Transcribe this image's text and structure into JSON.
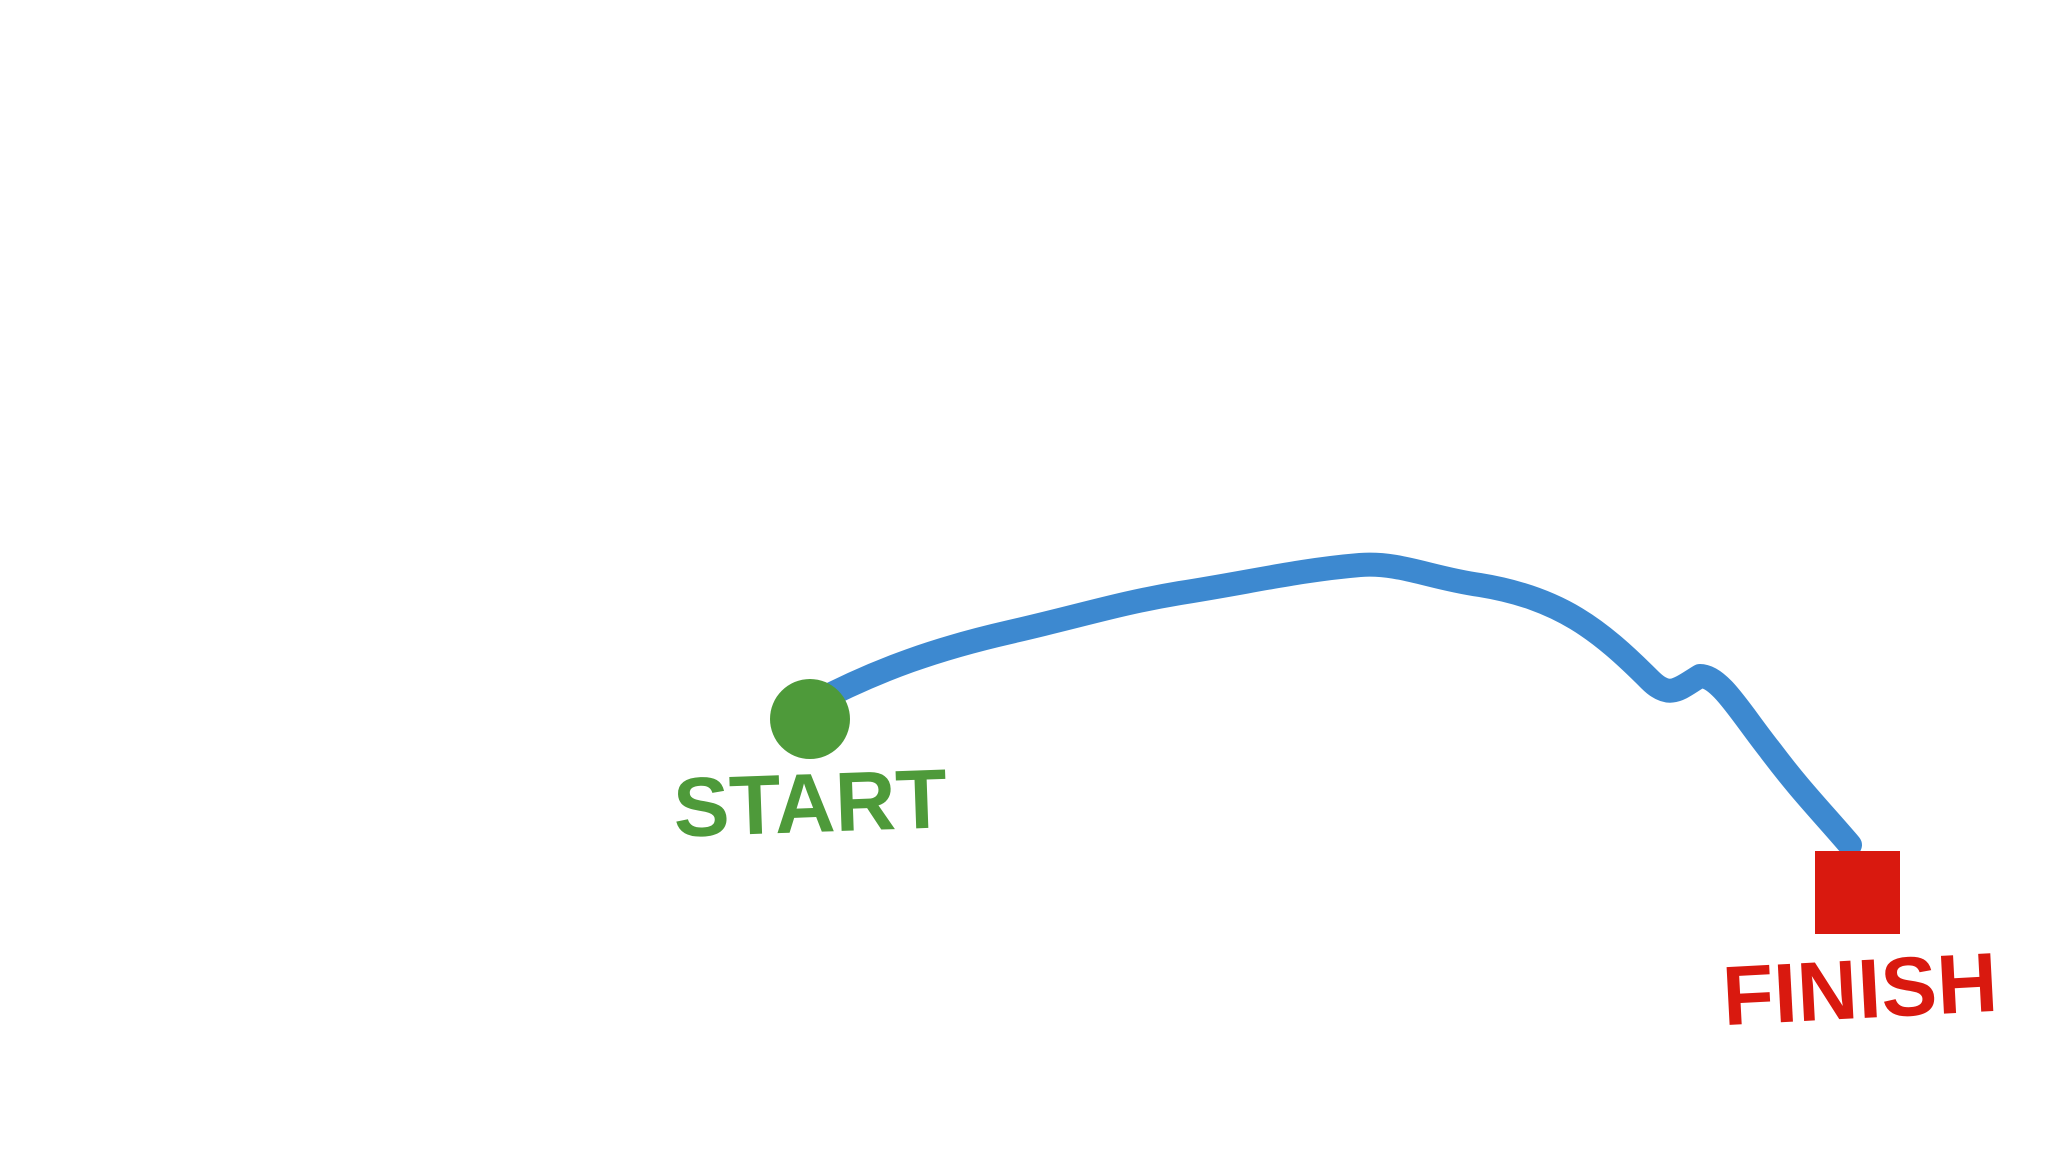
{
  "diagram": {
    "start": {
      "label": "START",
      "color": "#4e9a3a"
    },
    "finish": {
      "label": "FINISH",
      "color": "#d9190f"
    },
    "path": {
      "color": "#3d89d0"
    },
    "background": "#ffffff"
  }
}
